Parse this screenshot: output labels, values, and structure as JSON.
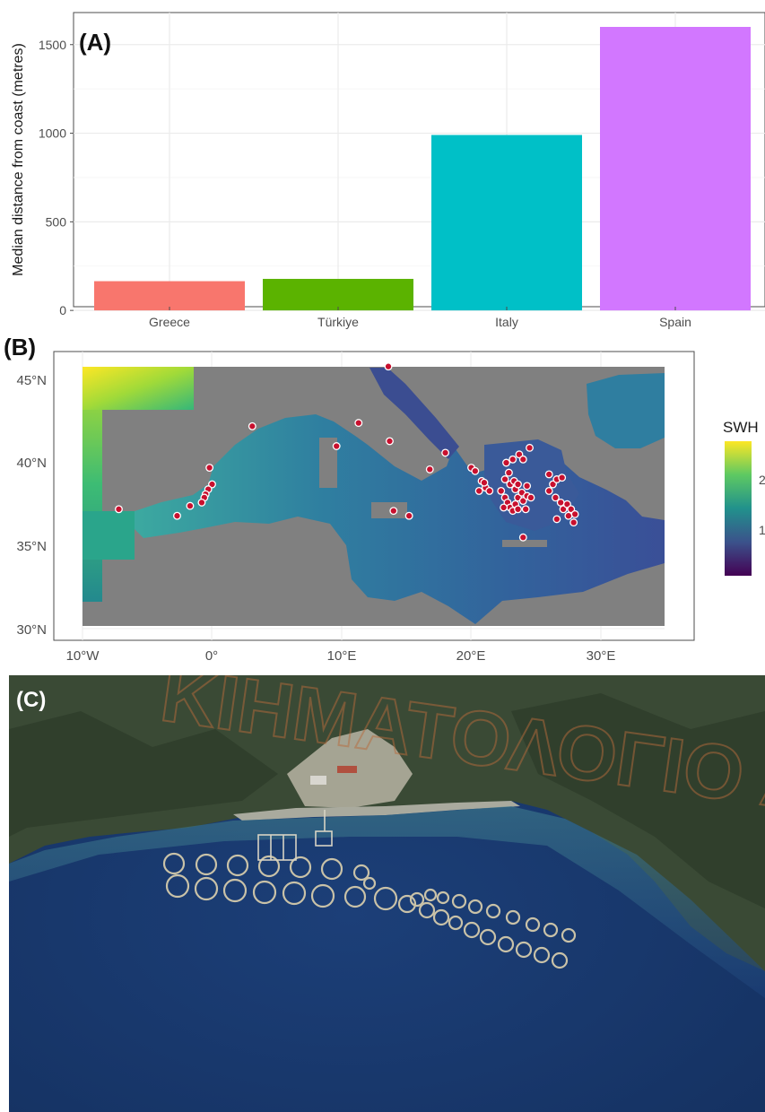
{
  "panels": {
    "a_label": "(A)",
    "b_label": "(B)",
    "c_label": "(C)"
  },
  "chart_data": [
    {
      "type": "bar",
      "panel": "(A)",
      "categories": [
        "Greece",
        "Türkiye",
        "Italy",
        "Spain"
      ],
      "values": [
        165,
        178,
        990,
        1600
      ],
      "colors": [
        "#F8766D",
        "#5BB300",
        "#00C0C7",
        "#D277FF"
      ],
      "xlabel": "",
      "ylabel": "Median distance from coast (metres)",
      "ylim": [
        -60,
        1600
      ],
      "yticks": [
        0,
        500,
        1000,
        1500
      ],
      "grid": true,
      "legend": "none"
    },
    {
      "type": "heatmap",
      "panel": "(B)",
      "xlabel": "",
      "ylabel": "",
      "xlim": [
        -10,
        35
      ],
      "ylim": [
        30,
        46
      ],
      "xticks": [
        -10,
        0,
        10,
        20,
        30
      ],
      "xtick_labels": [
        "10°W",
        "0°",
        "10°E",
        "20°E",
        "30°E"
      ],
      "yticks": [
        30,
        35,
        40,
        45
      ],
      "ytick_labels": [
        "30°N",
        "35°N",
        "40°N",
        "45°N"
      ],
      "colorbar": {
        "title": "SWH",
        "tick_labels": [
          "2",
          "1"
        ],
        "palette": "viridis"
      },
      "land_color": "#808080",
      "farm_color": "#C8102E",
      "points": [
        [
          13.6,
          45.8
        ],
        [
          3.1,
          42.2
        ],
        [
          11.3,
          42.4
        ],
        [
          9.6,
          41.0
        ],
        [
          13.7,
          41.3
        ],
        [
          -0.2,
          39.7
        ],
        [
          0.0,
          38.7
        ],
        [
          -0.3,
          38.4
        ],
        [
          -0.5,
          38.1
        ],
        [
          -0.6,
          37.9
        ],
        [
          -0.8,
          37.6
        ],
        [
          -1.7,
          37.4
        ],
        [
          -2.7,
          36.8
        ],
        [
          -7.2,
          37.2
        ],
        [
          14.0,
          37.1
        ],
        [
          15.2,
          36.8
        ],
        [
          16.8,
          39.6
        ],
        [
          18.0,
          40.6
        ],
        [
          20.0,
          39.7
        ],
        [
          20.3,
          39.5
        ],
        [
          20.8,
          38.9
        ],
        [
          21.1,
          38.5
        ],
        [
          21.4,
          38.3
        ],
        [
          20.6,
          38.3
        ],
        [
          21.0,
          38.8
        ],
        [
          22.3,
          38.3
        ],
        [
          22.6,
          37.9
        ],
        [
          22.8,
          37.6
        ],
        [
          23.0,
          37.3
        ],
        [
          23.2,
          37.1
        ],
        [
          23.4,
          37.5
        ],
        [
          23.6,
          37.9
        ],
        [
          23.9,
          38.2
        ],
        [
          24.0,
          37.7
        ],
        [
          23.4,
          38.4
        ],
        [
          23.0,
          38.7
        ],
        [
          22.6,
          39.0
        ],
        [
          22.9,
          39.4
        ],
        [
          23.3,
          38.9
        ],
        [
          23.6,
          38.7
        ],
        [
          24.3,
          38.0
        ],
        [
          24.6,
          37.9
        ],
        [
          24.2,
          37.2
        ],
        [
          22.7,
          40.0
        ],
        [
          23.7,
          40.5
        ],
        [
          24.0,
          40.2
        ],
        [
          24.5,
          40.9
        ],
        [
          24.0,
          35.5
        ],
        [
          26.0,
          39.3
        ],
        [
          26.3,
          38.7
        ],
        [
          26.0,
          38.3
        ],
        [
          26.5,
          37.9
        ],
        [
          26.9,
          37.6
        ],
        [
          27.1,
          37.2
        ],
        [
          27.4,
          37.5
        ],
        [
          27.7,
          37.2
        ],
        [
          28.0,
          36.9
        ],
        [
          27.5,
          36.8
        ],
        [
          26.6,
          36.6
        ],
        [
          27.9,
          36.4
        ],
        [
          26.6,
          39.0
        ],
        [
          27.0,
          39.1
        ],
        [
          23.6,
          37.2
        ],
        [
          22.5,
          37.3
        ],
        [
          24.3,
          38.6
        ],
        [
          23.2,
          40.2
        ]
      ]
    }
  ]
}
